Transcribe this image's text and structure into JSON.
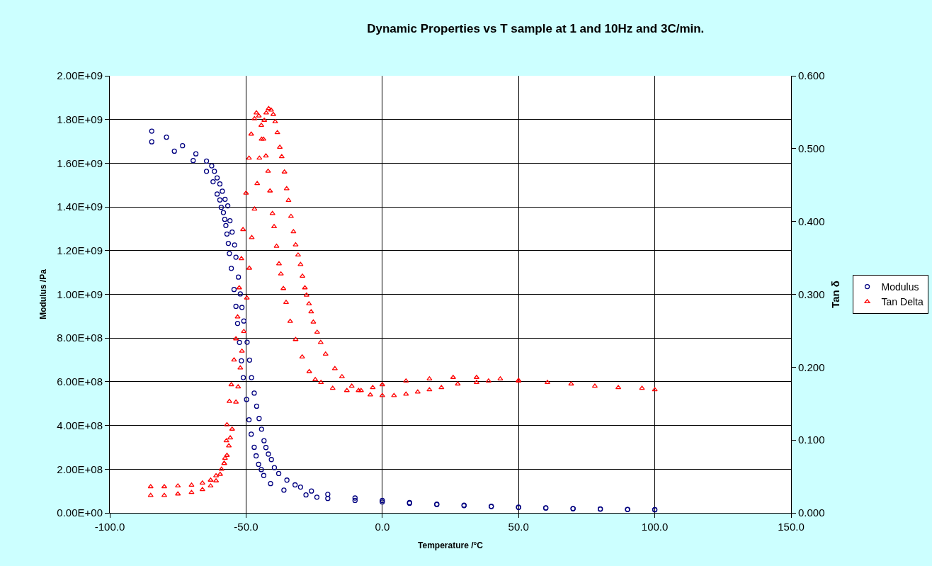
{
  "chart_data": {
    "type": "scatter",
    "title": "Dynamic Properties vs T sample at 1 and 10Hz and 3C/min.",
    "xlabel": "Temperature /°C",
    "ylabel": "Modulus /Pa",
    "y2label": "Tan δ",
    "xlim": [
      -100,
      150
    ],
    "xticks": [
      {
        "value": -100,
        "label": "-100.0"
      },
      {
        "value": -50,
        "label": "-50.0"
      },
      {
        "value": 0,
        "label": "0.0"
      },
      {
        "value": 50,
        "label": "50.0"
      },
      {
        "value": 100,
        "label": "100.0"
      },
      {
        "value": 150,
        "label": "150.0"
      }
    ],
    "ylim": [
      0,
      2000000000
    ],
    "yticks": [
      {
        "value": 0,
        "label": "0.00E+00"
      },
      {
        "value": 200000000,
        "label": "2.00E+08"
      },
      {
        "value": 400000000,
        "label": "4.00E+08"
      },
      {
        "value": 600000000,
        "label": "6.00E+08"
      },
      {
        "value": 800000000,
        "label": "8.00E+08"
      },
      {
        "value": 1000000000,
        "label": "1.00E+09"
      },
      {
        "value": 1200000000,
        "label": "1.20E+09"
      },
      {
        "value": 1400000000,
        "label": "1.40E+09"
      },
      {
        "value": 1600000000,
        "label": "1.60E+09"
      },
      {
        "value": 1800000000,
        "label": "1.80E+09"
      },
      {
        "value": 2000000000,
        "label": "2.00E+09"
      }
    ],
    "y2lim": [
      0,
      0.6
    ],
    "y2ticks": [
      {
        "value": 0,
        "label": "0.000"
      },
      {
        "value": 0.1,
        "label": "0.100"
      },
      {
        "value": 0.2,
        "label": "0.200"
      },
      {
        "value": 0.3,
        "label": "0.300"
      },
      {
        "value": 0.4,
        "label": "0.400"
      },
      {
        "value": 0.5,
        "label": "0.500"
      },
      {
        "value": 0.6,
        "label": "0.600"
      }
    ],
    "grid": true,
    "legend": "right",
    "series": [
      {
        "name": "Modulus",
        "color": "#000080",
        "marker": "circle",
        "x": [
          -84.6,
          -79.2,
          -73.3,
          -68.4,
          -64.5,
          -62.6,
          -61.6,
          -60.6,
          -59.6,
          -58.7,
          -57.7,
          -56.7,
          -55.9,
          -55.1,
          -54.2,
          -53.7,
          -52.8,
          -52.1,
          -51.5,
          -50.8,
          -49.6,
          -48.7,
          -48.0,
          -47.0,
          -46.1,
          -45.2,
          -44.3,
          -43.4,
          -42.7,
          -41.8,
          -40.7,
          -39.6,
          -38,
          -35,
          -32,
          -30,
          -26,
          -20,
          -10,
          0,
          10,
          20,
          30,
          40,
          50,
          60,
          70,
          80,
          90,
          100,
          -84.6,
          -76.3,
          -69.4,
          -64.5,
          -62.1,
          -60.6,
          -59.6,
          -59.1,
          -58.3,
          -57.8,
          -57.4,
          -57.0,
          -56.5,
          -56.1,
          -55.4,
          -54.4,
          -53.7,
          -53.1,
          -52.4,
          -51.7,
          -51.0,
          -49.8,
          -48.9,
          -48.1,
          -47.0,
          -46.3,
          -45.4,
          -44.4,
          -43.5,
          -41.0,
          -36.1,
          -28,
          -24,
          -20,
          -10,
          0,
          10,
          20,
          30,
          40,
          50,
          60,
          70,
          80,
          90,
          100
        ],
        "values": [
          1747000000,
          1719000000,
          1680000000,
          1643000000,
          1610000000,
          1588000000,
          1563000000,
          1533000000,
          1505000000,
          1472000000,
          1435000000,
          1405000000,
          1337000000,
          1285000000,
          1226000000,
          1170000000,
          1079000000,
          1002000000,
          940000000,
          878000000,
          781000000,
          699000000,
          619000000,
          548000000,
          488000000,
          432000000,
          383000000,
          330000000,
          299000000,
          269000000,
          244000000,
          207000000,
          180000000,
          150000000,
          128000000,
          118000000,
          100000000,
          85000000,
          68000000,
          57000000,
          47000000,
          40000000,
          35000000,
          30000000,
          26000000,
          23000000,
          20000000,
          18000000,
          16000000,
          15000000,
          1698000000,
          1655000000,
          1612000000,
          1563000000,
          1515000000,
          1459000000,
          1432000000,
          1398000000,
          1374000000,
          1343000000,
          1315000000,
          1276000000,
          1233000000,
          1187000000,
          1119000000,
          1022000000,
          945000000,
          867000000,
          780000000,
          696000000,
          619000000,
          519000000,
          426000000,
          360000000,
          300000000,
          261000000,
          222000000,
          198000000,
          171000000,
          134000000,
          104000000,
          82000000,
          72000000,
          66000000,
          57000000,
          50000000,
          44000000,
          38000000,
          33000000,
          29000000,
          25000000,
          22000000,
          19000000,
          17000000,
          15000000,
          14000000
        ]
      },
      {
        "name": "Tan Delta",
        "color": "#ff0000",
        "marker": "triangle",
        "axis": "y2",
        "x": [
          -85,
          -80,
          -75,
          -70,
          -66,
          -63,
          -61,
          -59.5,
          -58,
          -57.7,
          -57.2,
          -57.0,
          -56.1,
          -55.4,
          -54.4,
          -53.7,
          -53.1,
          -52.5,
          -51.7,
          -51.1,
          -50.0,
          -48.9,
          -48.1,
          -46.9,
          -46.2,
          -45.3,
          -44.4,
          -43.6,
          -42.7,
          -41.9,
          -41.2,
          -40.3,
          -39.7,
          -38.8,
          -37.9,
          -37.2,
          -36.3,
          -35.3,
          -33.8,
          -31.8,
          -29.4,
          -26.8,
          -24.6,
          -22.5,
          -18.2,
          -13.0,
          -7.8,
          -3.5,
          0,
          8.7,
          17.3,
          26.0,
          34.6,
          43.3,
          50,
          60.6,
          69.3,
          78,
          86.6,
          95.3,
          100,
          -85,
          -80,
          -75,
          -70,
          -66,
          -63,
          -61,
          -59,
          -58,
          -57,
          -56.3,
          -55.8,
          -55.1,
          -53.7,
          -52.9,
          -52.1,
          -51.5,
          -50.8,
          -49.7,
          -48.8,
          -47.9,
          -46.9,
          -45.9,
          -45.1,
          -44.3,
          -43.3,
          -42.6,
          -41.7,
          -40.8,
          -40.0,
          -39.3,
          -38.5,
          -37.6,
          -36.9,
          -35.9,
          -35.1,
          -34.4,
          -33.5,
          -32.6,
          -31.8,
          -30.9,
          -30.0,
          -29.3,
          -28.4,
          -27.8,
          -26.9,
          -26.1,
          -25.3,
          -23.9,
          -22.6,
          -20.8,
          -17.4,
          -14.8,
          -11.2,
          -8.7,
          -4.4,
          0,
          4.3,
          8.7,
          13,
          17.3,
          21.7,
          27.7,
          34.6,
          39,
          50
        ],
        "values": [
          0.024,
          0.024,
          0.026,
          0.028,
          0.032,
          0.037,
          0.044,
          0.053,
          0.068,
          0.075,
          0.099,
          0.121,
          0.153,
          0.176,
          0.21,
          0.239,
          0.269,
          0.309,
          0.349,
          0.389,
          0.439,
          0.487,
          0.52,
          0.541,
          0.549,
          0.545,
          0.532,
          0.513,
          0.49,
          0.469,
          0.442,
          0.411,
          0.393,
          0.366,
          0.342,
          0.328,
          0.308,
          0.289,
          0.263,
          0.238,
          0.214,
          0.194,
          0.183,
          0.179,
          0.171,
          0.168,
          0.168,
          0.172,
          0.176,
          0.181,
          0.184,
          0.186,
          0.186,
          0.184,
          0.181,
          0.179,
          0.177,
          0.174,
          0.172,
          0.171,
          0.169,
          0.036,
          0.036,
          0.037,
          0.038,
          0.041,
          0.045,
          0.051,
          0.06,
          0.068,
          0.079,
          0.092,
          0.103,
          0.115,
          0.152,
          0.173,
          0.199,
          0.222,
          0.249,
          0.295,
          0.336,
          0.378,
          0.417,
          0.452,
          0.487,
          0.513,
          0.539,
          0.549,
          0.555,
          0.553,
          0.547,
          0.537,
          0.522,
          0.502,
          0.489,
          0.468,
          0.445,
          0.429,
          0.407,
          0.386,
          0.368,
          0.354,
          0.341,
          0.325,
          0.309,
          0.299,
          0.287,
          0.276,
          0.262,
          0.248,
          0.234,
          0.218,
          0.198,
          0.187,
          0.174,
          0.168,
          0.162,
          0.161,
          0.161,
          0.163,
          0.166,
          0.169,
          0.172,
          0.177,
          0.179,
          0.181,
          0.182
        ]
      }
    ]
  }
}
